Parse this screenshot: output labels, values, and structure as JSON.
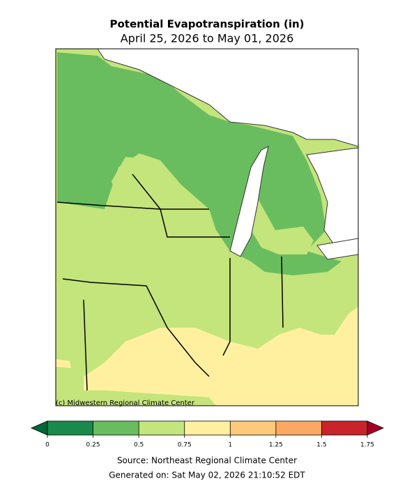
{
  "title": "Potential Evapotranspiration (in)",
  "subtitle": "April 25, 2026 to May 01, 2026",
  "credit": "(c) Midwestern Regional Climate Center",
  "colorbar": {
    "ticks": [
      0,
      0.25,
      0.5,
      0.75,
      1,
      1.25,
      1.5,
      1.75
    ],
    "colors": [
      "#1a8a4a",
      "#6abd5f",
      "#c4e47c",
      "#fff0a0",
      "#fdc97a",
      "#fba863",
      "#c8242a"
    ],
    "under_color": "#006837",
    "over_color": "#a50026"
  },
  "source": "Source: Northeast Regional Climate Center",
  "generated": "Generated on: Sat May 02, 2026 21:10:52 EDT"
}
